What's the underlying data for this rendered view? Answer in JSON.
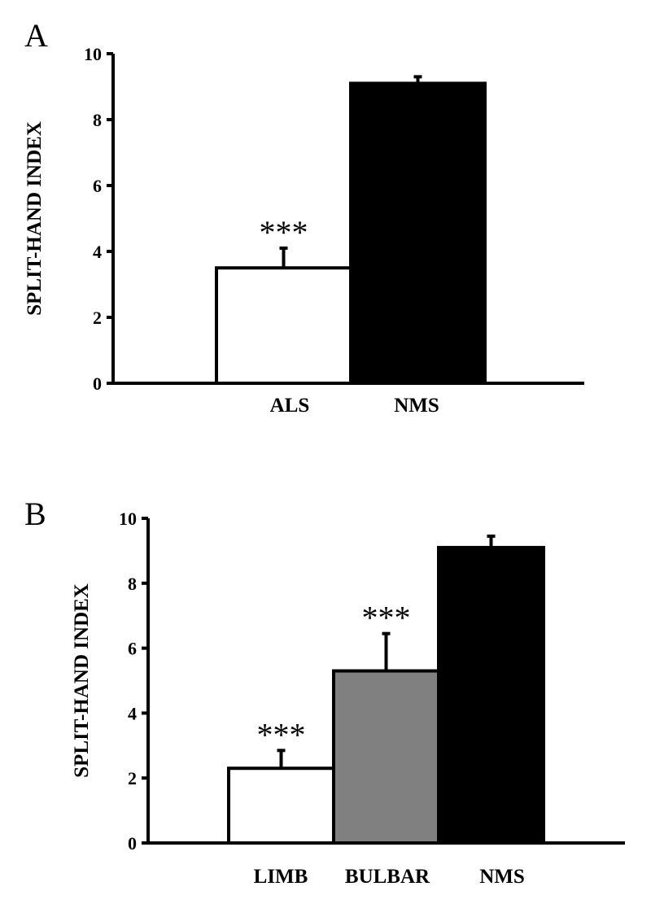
{
  "chart_data": [
    {
      "type": "bar",
      "panel_label": "A",
      "title": "",
      "xlabel": "",
      "ylabel": "SPLIT-HAND INDEX",
      "ylim": [
        0,
        10
      ],
      "yticks": [
        "0",
        "2",
        "4",
        "6",
        "8",
        "10"
      ],
      "categories": [
        "ALS",
        "NMS"
      ],
      "values": [
        3.5,
        9.1
      ],
      "error": [
        0.6,
        0.2
      ],
      "colors": [
        "#ffffff",
        "#000000"
      ],
      "annotations": [
        "***",
        ""
      ]
    },
    {
      "type": "bar",
      "panel_label": "B",
      "title": "",
      "xlabel": "",
      "ylabel": "SPLIT-HAND INDEX",
      "ylim": [
        0,
        10
      ],
      "yticks": [
        "0",
        "2",
        "4",
        "6",
        "8",
        "10"
      ],
      "categories": [
        "LIMB",
        "BULBAR",
        "NMS"
      ],
      "values": [
        2.3,
        5.3,
        9.1
      ],
      "error": [
        0.55,
        1.15,
        0.35
      ],
      "colors": [
        "#ffffff",
        "#808080",
        "#000000"
      ],
      "annotations": [
        "***",
        "***",
        ""
      ]
    }
  ]
}
